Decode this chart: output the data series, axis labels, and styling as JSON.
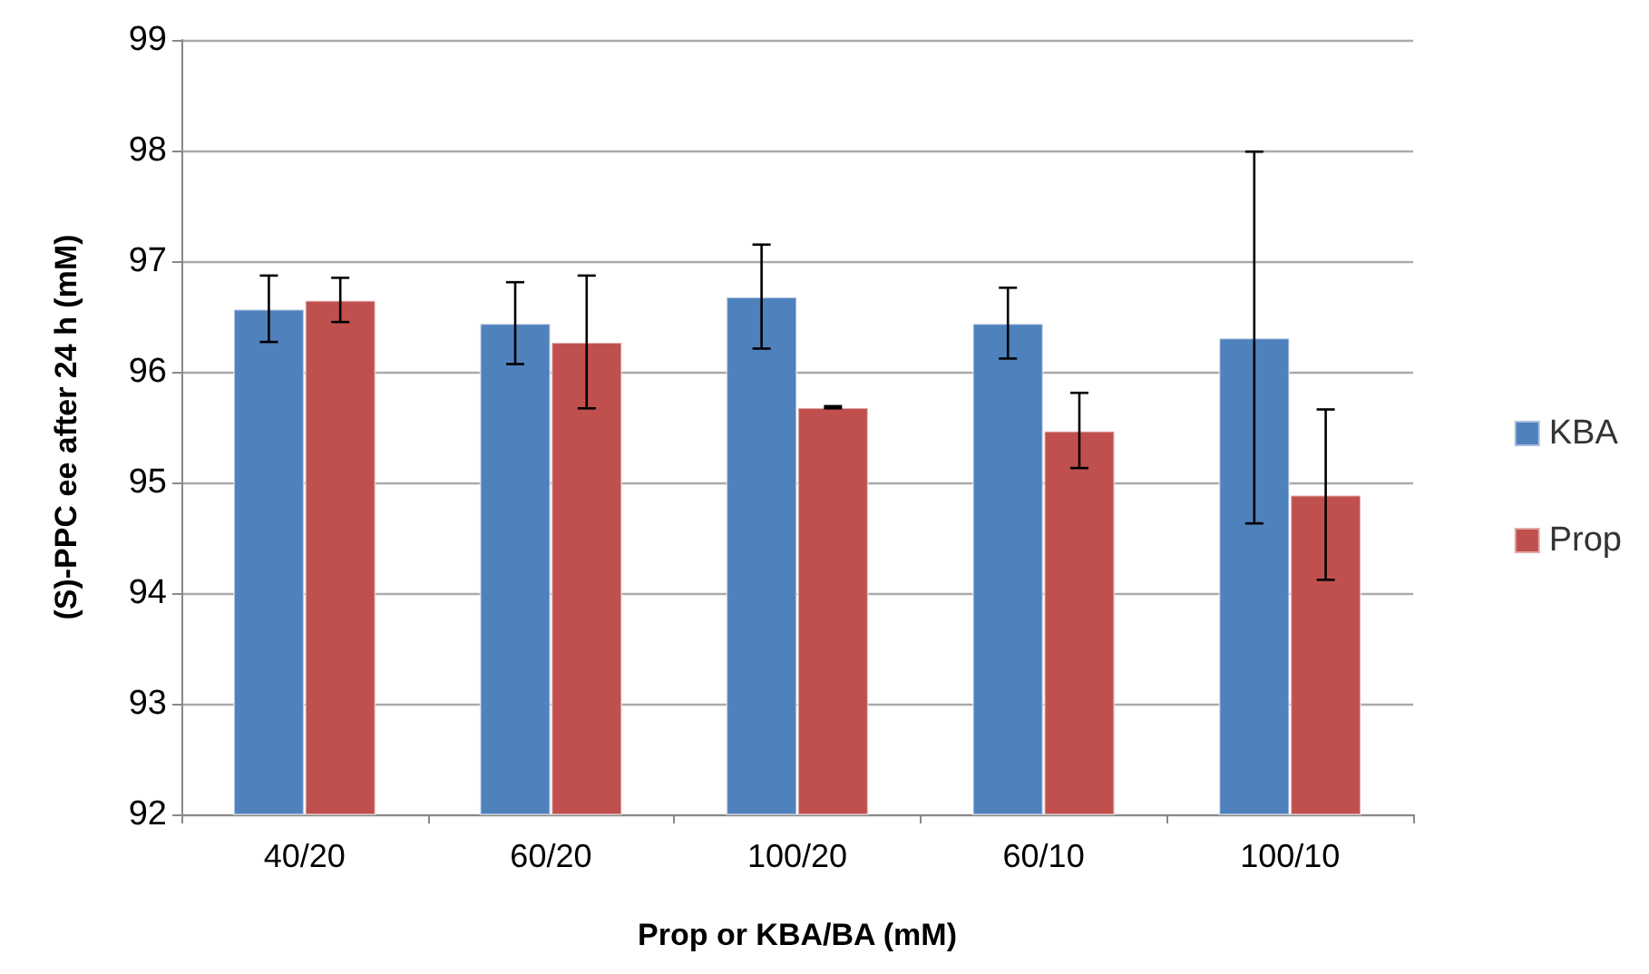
{
  "chart_data": {
    "type": "bar",
    "xlabel": "Prop or KBA/BA (mM)",
    "ylabel": "(S)-PPC ee after 24 h (mM)",
    "categories": [
      "40/20",
      "60/20",
      "100/20",
      "60/10",
      "100/10"
    ],
    "series": [
      {
        "name": "KBA",
        "color": "#4f81bd",
        "values": [
          96.57,
          96.44,
          96.68,
          96.44,
          96.31
        ],
        "errors": [
          0.3,
          0.37,
          0.47,
          0.32,
          1.68
        ]
      },
      {
        "name": "Prop",
        "color": "#c0504d",
        "values": [
          96.65,
          96.27,
          95.68,
          95.47,
          94.89
        ],
        "errors": [
          0.2,
          0.6,
          0.01,
          0.34,
          0.77
        ]
      }
    ],
    "ylim": [
      92,
      99
    ],
    "yticks": [
      92,
      93,
      94,
      95,
      96,
      97,
      98,
      99
    ],
    "grid": "y",
    "legend": "right"
  }
}
